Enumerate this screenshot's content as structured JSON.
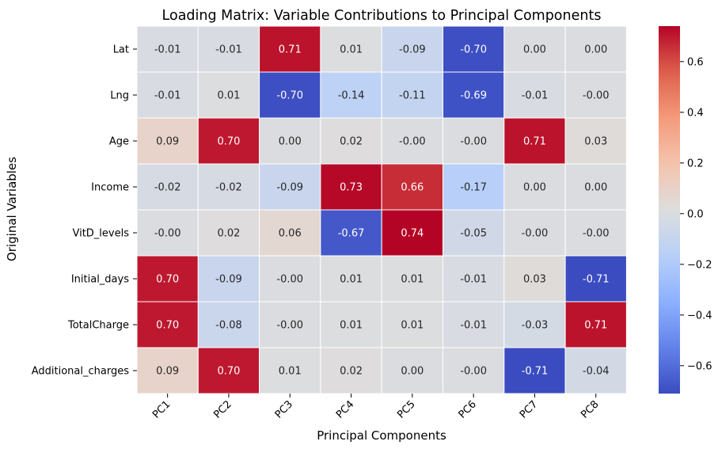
{
  "chart_data": {
    "type": "heatmap",
    "title": "Loading Matrix: Variable Contributions to Principal Components",
    "xlabel": "Principal Components",
    "ylabel": "Original Variables",
    "columns": [
      "PC1",
      "PC2",
      "PC3",
      "PC4",
      "PC5",
      "PC6",
      "PC7",
      "PC8"
    ],
    "rows": [
      "Lat",
      "Lng",
      "Age",
      "Income",
      "VitD_levels",
      "Initial_days",
      "TotalCharge",
      "Additional_charges"
    ],
    "values": [
      [
        -0.01,
        -0.01,
        0.71,
        0.01,
        -0.09,
        -0.7,
        0.0,
        0.0
      ],
      [
        -0.01,
        0.01,
        -0.7,
        -0.14,
        -0.11,
        -0.69,
        -0.01,
        -0.0
      ],
      [
        0.09,
        0.7,
        0.0,
        0.02,
        -0.0,
        -0.0,
        0.71,
        0.03
      ],
      [
        -0.02,
        -0.02,
        -0.09,
        0.73,
        0.66,
        -0.17,
        0.0,
        0.0
      ],
      [
        -0.0,
        0.02,
        0.06,
        -0.67,
        0.74,
        -0.05,
        -0.0,
        -0.0
      ],
      [
        0.7,
        -0.09,
        -0.0,
        0.01,
        0.01,
        -0.01,
        0.03,
        -0.71
      ],
      [
        0.7,
        -0.08,
        -0.0,
        0.01,
        0.01,
        -0.01,
        -0.03,
        0.71
      ],
      [
        0.09,
        0.7,
        0.01,
        0.02,
        0.0,
        -0.0,
        -0.71,
        -0.04
      ]
    ],
    "labels": [
      [
        "-0.01",
        "-0.01",
        "0.71",
        "0.01",
        "-0.09",
        "-0.70",
        "0.00",
        "0.00"
      ],
      [
        "-0.01",
        "0.01",
        "-0.70",
        "-0.14",
        "-0.11",
        "-0.69",
        "-0.01",
        "-0.00"
      ],
      [
        "0.09",
        "0.70",
        "0.00",
        "0.02",
        "-0.00",
        "-0.00",
        "0.71",
        "0.03"
      ],
      [
        "-0.02",
        "-0.02",
        "-0.09",
        "0.73",
        "0.66",
        "-0.17",
        "0.00",
        "0.00"
      ],
      [
        "-0.00",
        "0.02",
        "0.06",
        "-0.67",
        "0.74",
        "-0.05",
        "-0.00",
        "-0.00"
      ],
      [
        "0.70",
        "-0.09",
        "-0.00",
        "0.01",
        "0.01",
        "-0.01",
        "0.03",
        "-0.71"
      ],
      [
        "0.70",
        "-0.08",
        "-0.00",
        "0.01",
        "0.01",
        "-0.01",
        "-0.03",
        "0.71"
      ],
      [
        "0.09",
        "0.70",
        "0.01",
        "0.02",
        "0.00",
        "-0.00",
        "-0.71",
        "-0.04"
      ]
    ],
    "colormap": "coolwarm",
    "colorbar": {
      "vmin": -0.71,
      "vmax": 0.74,
      "ticks": [
        0.6,
        0.4,
        0.2,
        0.0,
        -0.2,
        -0.4,
        -0.6
      ],
      "tick_labels": [
        "0.6",
        "0.4",
        "0.2",
        "0.0",
        "−0.2",
        "−0.4",
        "−0.6"
      ]
    },
    "grid": false,
    "legend": "colorbar-right"
  }
}
